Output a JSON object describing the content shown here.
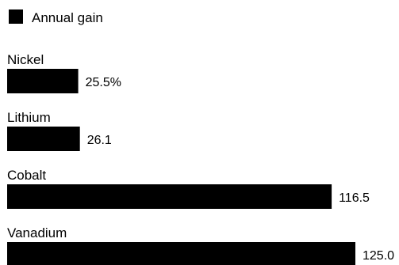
{
  "chart_data": {
    "type": "bar",
    "orientation": "horizontal",
    "legend": {
      "placement": "top-left",
      "entries": [
        {
          "name": "Annual gain",
          "color": "#000000"
        }
      ]
    },
    "categories": [
      "Nickel",
      "Lithium",
      "Cobalt",
      "Vanadium"
    ],
    "series": [
      {
        "name": "Annual gain",
        "color": "#000000",
        "values": [
          25.5,
          26.1,
          116.5,
          125.0
        ],
        "value_labels": [
          "25.5%",
          "26.1",
          "116.5",
          "125.0"
        ]
      }
    ],
    "xlim": [
      0,
      125
    ],
    "grid": false
  }
}
